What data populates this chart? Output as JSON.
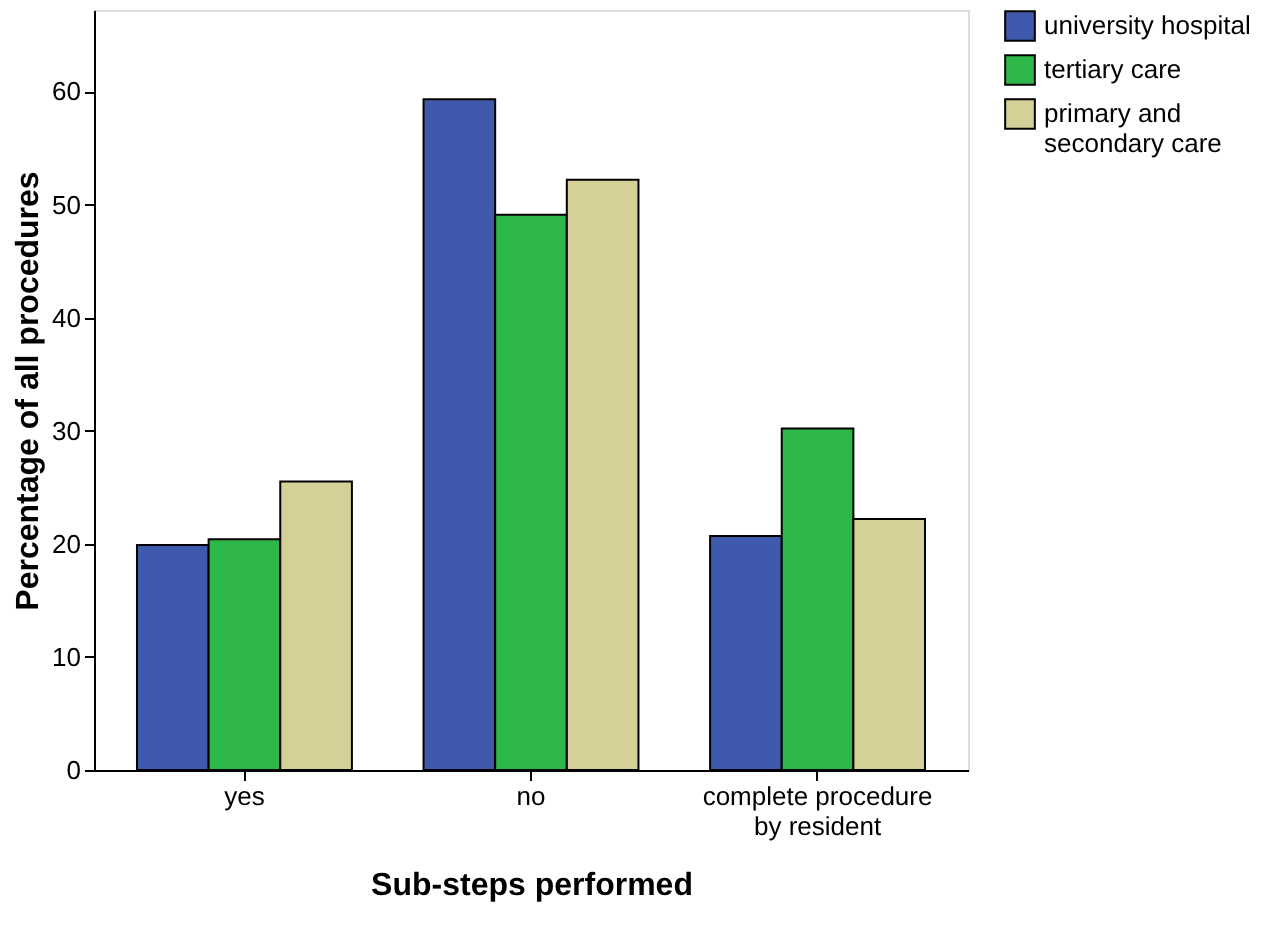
{
  "chart_data": {
    "type": "bar",
    "xlabel": "Sub-steps performed",
    "ylabel": "Percentage of all procedures",
    "categories": [
      "yes",
      "no",
      "complete procedure\nby resident"
    ],
    "series": [
      {
        "name": "university hospital",
        "color": "#3f59ad",
        "values": [
          19.9,
          59.3,
          20.7
        ]
      },
      {
        "name": "tertiary care",
        "color": "#2fb84a",
        "values": [
          20.4,
          49.1,
          30.2
        ]
      },
      {
        "name": "primary and\nsecondary care",
        "color": "#d4d098",
        "values": [
          25.5,
          52.2,
          22.2
        ]
      }
    ],
    "ylim": [
      0,
      67.2
    ],
    "yticks": [
      0,
      10,
      20,
      30,
      40,
      50,
      60
    ],
    "grid": false,
    "legend": "top right"
  }
}
